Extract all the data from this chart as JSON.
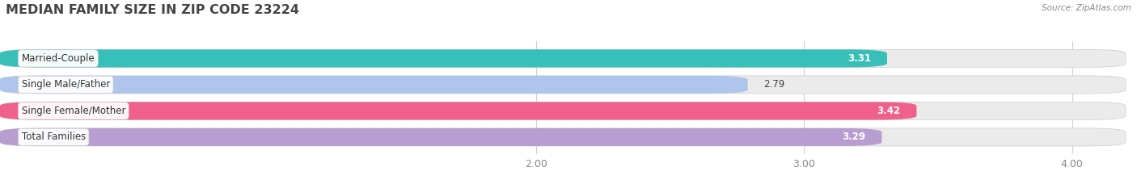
{
  "title": "MEDIAN FAMILY SIZE IN ZIP CODE 23224",
  "source": "Source: ZipAtlas.com",
  "categories": [
    "Married-Couple",
    "Single Male/Father",
    "Single Female/Mother",
    "Total Families"
  ],
  "values": [
    3.31,
    2.79,
    3.42,
    3.29
  ],
  "bar_colors": [
    "#38bfb8",
    "#afc5ec",
    "#f0608c",
    "#b89ed0"
  ],
  "bar_bg_color": "#ebebeb",
  "xlim": [
    0.0,
    4.2
  ],
  "xticks": [
    2.0,
    3.0,
    4.0
  ],
  "xticklabels": [
    "2.00",
    "3.00",
    "4.00"
  ],
  "title_fontsize": 11.5,
  "label_fontsize": 8.5,
  "value_fontsize": 8.5,
  "bar_height": 0.68,
  "bar_gap": 0.32,
  "background_color": "#ffffff",
  "grid_color": "#d0d0d0",
  "tick_color": "#888888"
}
